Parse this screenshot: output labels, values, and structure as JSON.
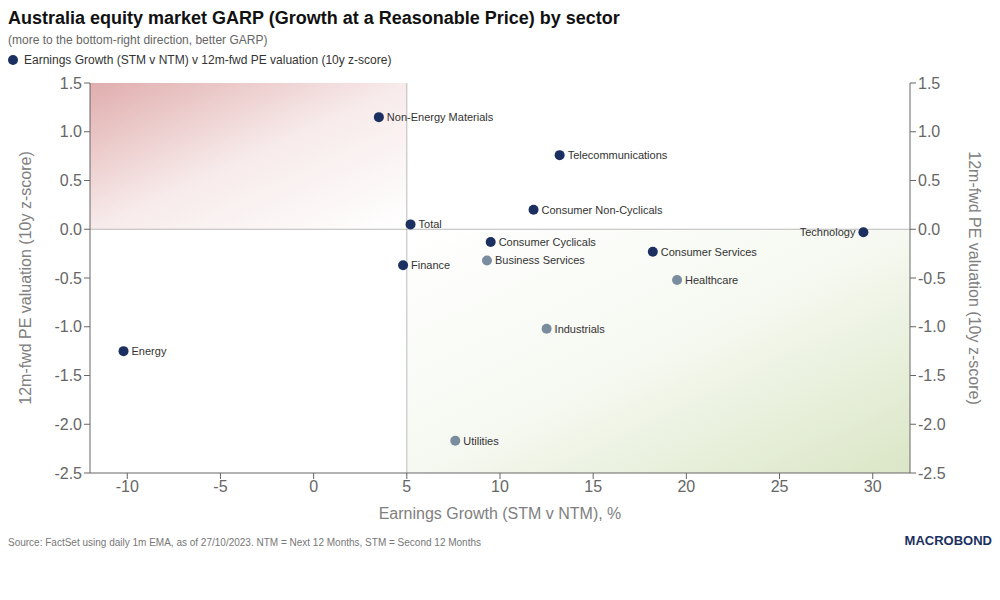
{
  "chart_data": {
    "type": "scatter",
    "title": "Australia equity market GARP (Growth at a Reasonable Price) by sector",
    "subtitle": "(more to the bottom-right direction, better GARP)",
    "xlabel": "Earnings Growth (STM v NTM), %",
    "ylabel": "12m-fwd PE valuation (10y z-score)",
    "y2label": "12m-fwd PE valuation (10y z-score)",
    "source": "Source: FactSet using daily 1m EMA, as of 27/10/2023. NTM = Next 12 Months, STM = Second 12 Months",
    "annotations": [
      "MACROBOND"
    ],
    "xlim": [
      -12,
      32
    ],
    "ylim": [
      -2.5,
      1.5
    ],
    "y2lim": [
      -2.5,
      1.5
    ],
    "xticks": [
      -10,
      -5,
      0,
      5,
      10,
      15,
      20,
      25,
      30
    ],
    "yticks": [
      -2.5,
      {
        "value": -2,
        "label": "-2.0"
      },
      -1.5,
      {
        "value": -1,
        "label": "-1.0"
      },
      -0.5,
      {
        "value": 0,
        "label": "0.0"
      },
      0.5,
      {
        "value": 1,
        "label": "1.0"
      },
      1.5
    ],
    "y2ticks": [
      -2.5,
      {
        "value": -2,
        "label": "-2.0"
      },
      -1.5,
      {
        "value": -1,
        "label": "-1.0"
      },
      -0.5,
      {
        "value": 0,
        "label": "0.0"
      },
      0.5,
      {
        "value": 1,
        "label": "1.0"
      },
      1.5
    ],
    "grid": false,
    "legend": "top left",
    "reference_lines": {
      "x": [
        5
      ],
      "y": [
        0
      ]
    },
    "regions": [
      {
        "x0": -12,
        "x1": 5,
        "y0": 0,
        "y1": 1.5,
        "color": "#d99999"
      },
      {
        "x0": 5,
        "x1": 32,
        "y0": -2.5,
        "y1": 0,
        "color": "#d1e0b8"
      }
    ],
    "series": [
      {
        "name": "Earnings Growth (STM v NTM) v 12m-fwd PE valuation (10y z-score)",
        "color": "#1b3060",
        "x": [
          -10.2,
          3.5,
          4.8,
          5.2,
          9.5,
          9.3,
          11.8,
          13.2,
          18.2,
          19.5,
          12.5,
          7.6,
          29.5
        ],
        "values": [
          -1.25,
          1.15,
          -0.37,
          0.05,
          -0.13,
          -0.32,
          0.2,
          0.76,
          -0.23,
          -0.52,
          -1.02,
          -2.17,
          -0.03
        ],
        "labels": [
          "Energy",
          "Non-Energy Materials",
          "Finance",
          "Total",
          "Consumer Cyclicals",
          "Business Services",
          "Consumer Non-Cyclicals",
          "Telecommunications",
          "Consumer Services",
          "Healthcare",
          "Industrials",
          "Utilities",
          "Technology"
        ],
        "colors": [
          "#1b3060",
          "#1b3060",
          "#1b3060",
          "#1b3060",
          "#1b3060",
          "#7a8d9e",
          "#1b3060",
          "#1b3060",
          "#1b3060",
          "#7a8d9e",
          "#7a8d9e",
          "#7a8d9e",
          "#1b3060"
        ]
      }
    ]
  }
}
